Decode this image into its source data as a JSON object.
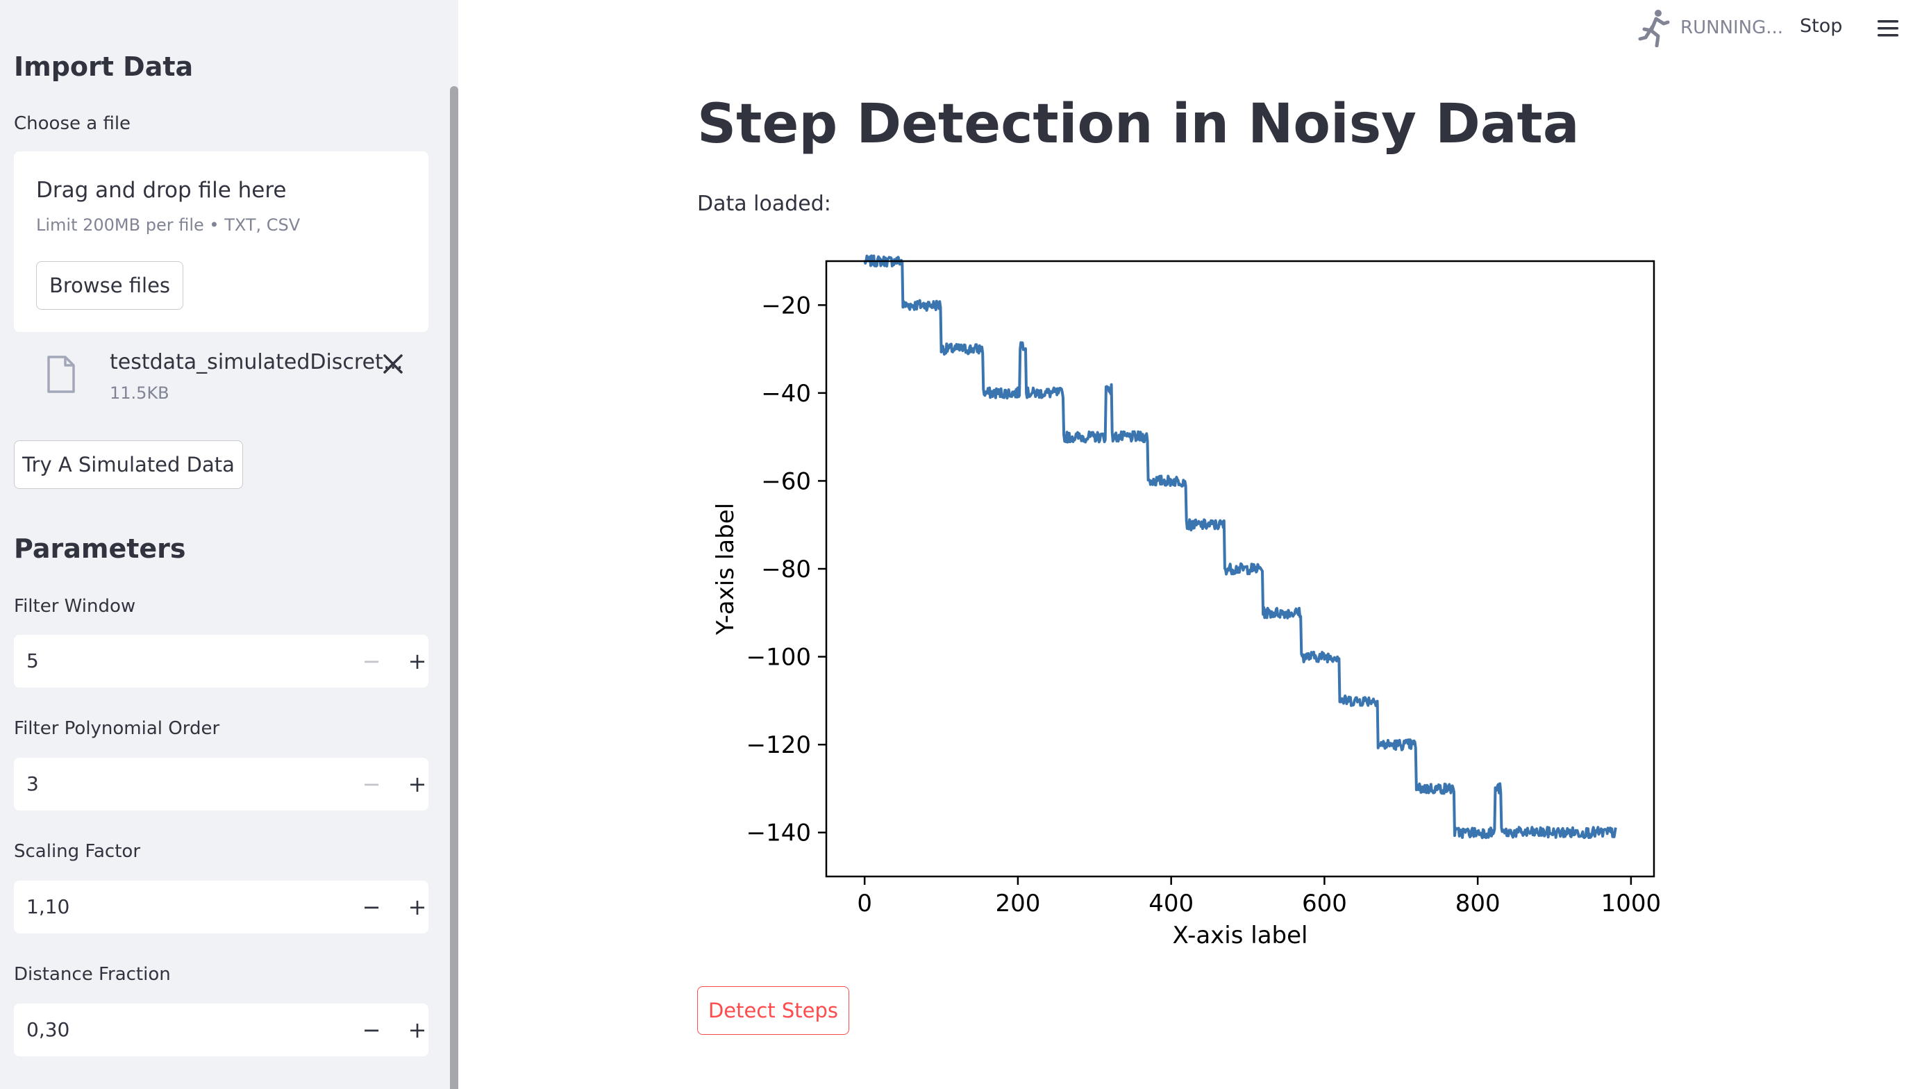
{
  "sidebar": {
    "import_heading": "Import Data",
    "choose_label": "Choose a file",
    "uploader": {
      "drag_text": "Drag and drop file here",
      "limit_text": "Limit 200MB per file • TXT, CSV",
      "browse_label": "Browse files"
    },
    "file": {
      "name": "testdata_simulatedDiscret...",
      "size": "11.5KB",
      "icon": "file-icon"
    },
    "simulate_label": "Try A Simulated Data",
    "params_heading": "Parameters",
    "params": [
      {
        "label": "Filter Window",
        "value": "5",
        "minus_disabled": true
      },
      {
        "label": "Filter Polynomial Order",
        "value": "3",
        "minus_disabled": true
      },
      {
        "label": "Scaling Factor",
        "value": "1,10",
        "minus_disabled": false
      },
      {
        "label": "Distance Fraction",
        "value": "0,30",
        "minus_disabled": false
      }
    ]
  },
  "header": {
    "status_text": "RUNNING...",
    "stop_label": "Stop",
    "menu_icon": "hamburger-menu-icon"
  },
  "main": {
    "title": "Step Detection in Noisy Data",
    "data_loaded_label": "Data loaded:",
    "detect_label": "Detect Steps"
  },
  "colors": {
    "sidebar_bg": "#f0f2f6",
    "accent": "#ff4b4b",
    "line": "#3a75b0",
    "text": "#31333f"
  },
  "chart_data": {
    "type": "line",
    "xlabel": "X-axis label",
    "ylabel": "Y-axis label",
    "xlim": [
      -50,
      1030
    ],
    "ylim": [
      -150,
      -10
    ],
    "xticks": [
      0,
      200,
      400,
      600,
      800,
      1000
    ],
    "xtick_labels": [
      "0",
      "200",
      "400",
      "600",
      "800",
      "1000"
    ],
    "yticks": [
      -20,
      -40,
      -60,
      -80,
      -100,
      -120,
      -140
    ],
    "ytick_labels": [
      "−20",
      "−40",
      "−60",
      "−80",
      "−100",
      "−120",
      "−140"
    ],
    "x_range": [
      0,
      980
    ],
    "steps": [
      {
        "x_start": 0,
        "x_end": 50,
        "y": -10
      },
      {
        "x_start": 50,
        "x_end": 100,
        "y": -20
      },
      {
        "x_start": 100,
        "x_end": 155,
        "y": -30
      },
      {
        "x_start": 155,
        "x_end": 260,
        "y": -40
      },
      {
        "x_start": 260,
        "x_end": 370,
        "y": -50
      },
      {
        "x_start": 370,
        "x_end": 420,
        "y": -60
      },
      {
        "x_start": 420,
        "x_end": 470,
        "y": -70
      },
      {
        "x_start": 470,
        "x_end": 520,
        "y": -80
      },
      {
        "x_start": 520,
        "x_end": 570,
        "y": -90
      },
      {
        "x_start": 570,
        "x_end": 620,
        "y": -100
      },
      {
        "x_start": 620,
        "x_end": 670,
        "y": -110
      },
      {
        "x_start": 670,
        "x_end": 720,
        "y": -120
      },
      {
        "x_start": 720,
        "x_end": 770,
        "y": -130
      },
      {
        "x_start": 770,
        "x_end": 980,
        "y": -140
      }
    ],
    "spikes": [
      {
        "x_start": 203,
        "x_end": 210,
        "y": -29
      },
      {
        "x_start": 315,
        "x_end": 322,
        "y": -39
      },
      {
        "x_start": 823,
        "x_end": 830,
        "y": -130
      }
    ],
    "noise_amplitude": 1.2,
    "grid": false,
    "legend": "none"
  }
}
